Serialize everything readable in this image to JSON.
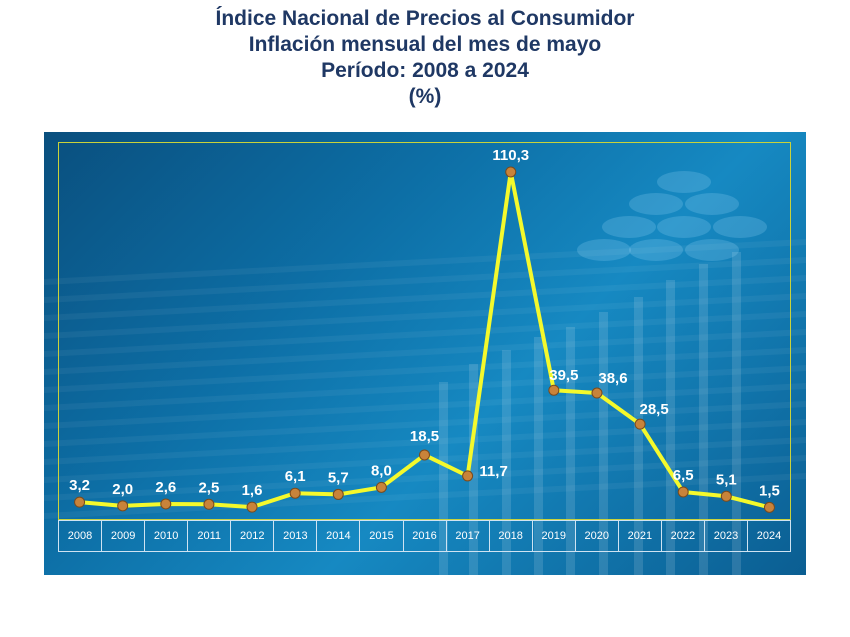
{
  "title": {
    "line1": "Índice Nacional de Precios al Consumidor",
    "line2": "Inflación mensual del mes de mayo",
    "line3": "Período: 2008 a 2024",
    "line4": "(%)"
  },
  "colors": {
    "line": "#f4f92c",
    "marker": "#c8833a",
    "label": "#ffffff",
    "title": "#1f3864"
  },
  "chart_data": {
    "type": "line",
    "categories": [
      "2008",
      "2009",
      "2010",
      "2011",
      "2012",
      "2013",
      "2014",
      "2015",
      "2016",
      "2017",
      "2018",
      "2019",
      "2020",
      "2021",
      "2022",
      "2023",
      "2024"
    ],
    "values": [
      3.2,
      2.0,
      2.6,
      2.5,
      1.6,
      6.1,
      5.7,
      8.0,
      18.5,
      11.7,
      110.3,
      39.5,
      38.6,
      28.5,
      6.5,
      5.1,
      1.5
    ],
    "labels": [
      "3,2",
      "2,0",
      "2,6",
      "2,5",
      "1,6",
      "6,1",
      "5,7",
      "8,0",
      "18,5",
      "11,7",
      "110,3",
      "39,5",
      "38,6",
      "28,5",
      "6,5",
      "5,1",
      "1,5"
    ],
    "title": "Índice Nacional de Precios al Consumidor",
    "xlabel": "",
    "ylabel": "",
    "ylim": [
      0,
      115
    ],
    "grid": false
  }
}
